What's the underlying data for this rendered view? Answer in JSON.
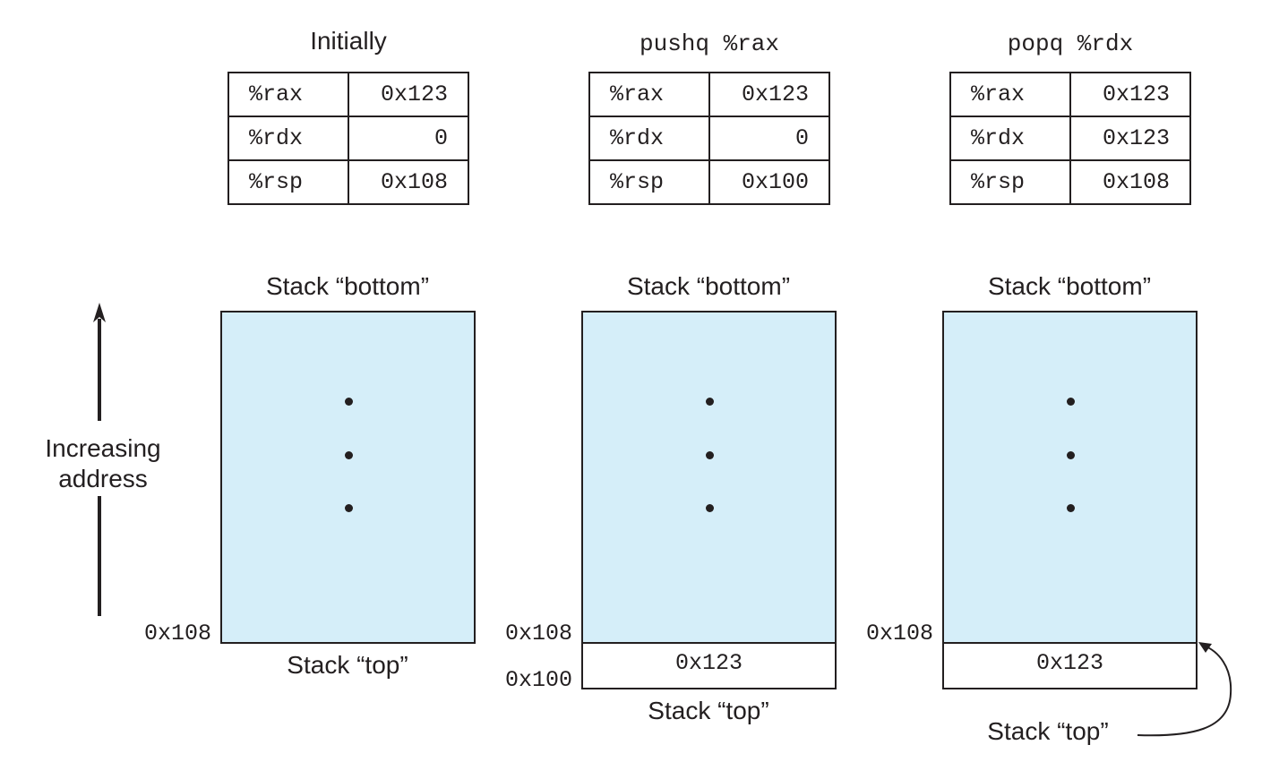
{
  "panels": [
    {
      "title": "Initially",
      "registers": [
        {
          "name": "%rax",
          "value": "0x123"
        },
        {
          "name": "%rdx",
          "value": "0"
        },
        {
          "name": "%rsp",
          "value": "0x108"
        }
      ],
      "stack_bottom_label": "Stack “bottom”",
      "stack_top_label": "Stack “top”",
      "addresses": [
        "0x108"
      ]
    },
    {
      "title": "pushq %rax",
      "registers": [
        {
          "name": "%rax",
          "value": "0x123"
        },
        {
          "name": "%rdx",
          "value": "0"
        },
        {
          "name": "%rsp",
          "value": "0x100"
        }
      ],
      "stack_bottom_label": "Stack “bottom”",
      "stack_top_label": "Stack “top”",
      "stack_cell_value": "0x123",
      "addresses": [
        "0x108",
        "0x100"
      ]
    },
    {
      "title": "popq %rdx",
      "registers": [
        {
          "name": "%rax",
          "value": "0x123"
        },
        {
          "name": "%rdx",
          "value": "0x123"
        },
        {
          "name": "%rsp",
          "value": "0x108"
        }
      ],
      "stack_bottom_label": "Stack “bottom”",
      "stack_top_label": "Stack “top”",
      "stack_cell_value": "0x123",
      "addresses": [
        "0x108"
      ]
    }
  ],
  "axis": {
    "label_line1": "Increasing",
    "label_line2": "address"
  },
  "colors": {
    "stack_fill": "#d5eef9",
    "ink": "#231f20"
  }
}
